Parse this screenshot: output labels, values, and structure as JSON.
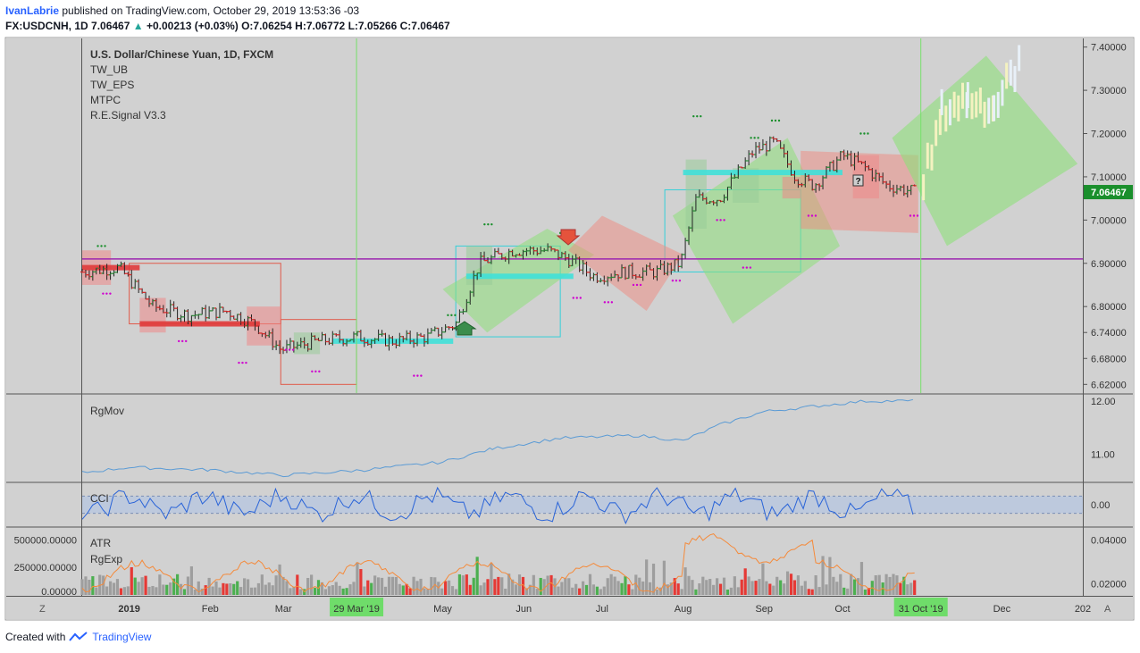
{
  "header": {
    "author": "IvanLabrie",
    "published": "published on TradingView.com, October 29, 2019 13:53:36 -03",
    "symbol": "FX:USDCNH, 1D",
    "last": "7.06467",
    "change": "+0.00213 (+0.03%)",
    "o_label": "O:",
    "o": "7.06254",
    "h_label": "H:",
    "h": "7.06772",
    "l_label": "L:",
    "l": "7.05266",
    "c_label": "C:",
    "c": "7.06467"
  },
  "legend": {
    "title": "U.S. Dollar/Chinese Yuan, 1D, FXCM",
    "items": [
      "TW_UB",
      "TW_EPS",
      "MTPC",
      "R.E.Signal V3.3"
    ]
  },
  "panes": {
    "rgmov": "RgMov",
    "cci": "CCI",
    "atr": "ATR",
    "rgexp": "RgExp"
  },
  "footer": {
    "created_with": "Created with",
    "brand": "TradingView"
  },
  "colors": {
    "up": "#4caf50",
    "down": "#e53935",
    "line": "#5b9bd5",
    "atr": "#f58a3a",
    "purple": "#9c27b0",
    "green_line": "#76e06a",
    "price_tag": "#1a8f2c",
    "cci_band": "#b8c7e0",
    "bg": "#d1d1d1"
  },
  "chart_data": [
    {
      "type": "candlestick",
      "title": "U.S. Dollar/Chinese Yuan, 1D, FXCM",
      "y_ticks": [
        "7.40000",
        "7.30000",
        "7.20000",
        "7.10000",
        "7.00000",
        "6.90000",
        "6.80000",
        "6.74000",
        "6.68000",
        "6.62000"
      ],
      "y_tick_values": [
        7.4,
        7.3,
        7.2,
        7.1,
        7.0,
        6.9,
        6.8,
        6.74,
        6.68,
        6.62
      ],
      "ylim": [
        6.6,
        7.42
      ],
      "last_price_label": "7.06467",
      "horizontal_line": 6.91,
      "x_ticks": [
        "2019",
        "Feb",
        "Mar",
        "29 Mar '19",
        "May",
        "Jun",
        "Jul",
        "Aug",
        "Sep",
        "Oct",
        "31 Oct '19",
        "Dec",
        "202"
      ],
      "x_tick_positions": [
        "2019-01-01",
        "2019-02-01",
        "2019-03-01",
        "2019-03-29",
        "2019-05-01",
        "2019-06-01",
        "2019-07-01",
        "2019-08-01",
        "2019-09-01",
        "2019-10-01",
        "2019-10-31",
        "2019-12-01",
        "2020-01-01"
      ],
      "x_range": [
        "2018-12-14",
        "2020-01-01"
      ],
      "closes_by_month": [
        {
          "date": "2018-12-14",
          "close": 6.88
        },
        {
          "date": "2018-12-28",
          "close": 6.89
        },
        {
          "date": "2019-01-10",
          "close": 6.8
        },
        {
          "date": "2019-01-24",
          "close": 6.78
        },
        {
          "date": "2019-02-07",
          "close": 6.79
        },
        {
          "date": "2019-02-18",
          "close": 6.76
        },
        {
          "date": "2019-02-28",
          "close": 6.7
        },
        {
          "date": "2019-03-14",
          "close": 6.72
        },
        {
          "date": "2019-03-29",
          "close": 6.73
        },
        {
          "date": "2019-04-12",
          "close": 6.72
        },
        {
          "date": "2019-04-25",
          "close": 6.73
        },
        {
          "date": "2019-05-06",
          "close": 6.76
        },
        {
          "date": "2019-05-15",
          "close": 6.9
        },
        {
          "date": "2019-05-28",
          "close": 6.93
        },
        {
          "date": "2019-06-10",
          "close": 6.93
        },
        {
          "date": "2019-06-18",
          "close": 6.91
        },
        {
          "date": "2019-06-28",
          "close": 6.87
        },
        {
          "date": "2019-07-10",
          "close": 6.88
        },
        {
          "date": "2019-07-22",
          "close": 6.88
        },
        {
          "date": "2019-07-31",
          "close": 6.9
        },
        {
          "date": "2019-08-06",
          "close": 7.05
        },
        {
          "date": "2019-08-15",
          "close": 7.05
        },
        {
          "date": "2019-08-28",
          "close": 7.16
        },
        {
          "date": "2019-09-05",
          "close": 7.18
        },
        {
          "date": "2019-09-13",
          "close": 7.1
        },
        {
          "date": "2019-09-20",
          "close": 7.08
        },
        {
          "date": "2019-10-01",
          "close": 7.15
        },
        {
          "date": "2019-10-10",
          "close": 7.12
        },
        {
          "date": "2019-10-18",
          "close": 7.08
        },
        {
          "date": "2019-10-29",
          "close": 7.06467
        }
      ],
      "projection": [
        {
          "date": "2019-11-01",
          "close": 7.1
        },
        {
          "date": "2019-11-08",
          "close": 7.25
        },
        {
          "date": "2019-11-18",
          "close": 7.28
        },
        {
          "date": "2019-11-28",
          "close": 7.26
        },
        {
          "date": "2019-12-08",
          "close": 7.37
        }
      ]
    },
    {
      "type": "line",
      "name": "RgMov",
      "y_ticks": [
        "12.00",
        "11.00"
      ],
      "y_tick_values": [
        12.0,
        11.0
      ],
      "ylim": [
        10.5,
        12.1
      ],
      "points": [
        {
          "date": "2018-12-14",
          "value": 10.65
        },
        {
          "date": "2019-01-01",
          "value": 10.75
        },
        {
          "date": "2019-02-01",
          "value": 10.7
        },
        {
          "date": "2019-03-01",
          "value": 10.6
        },
        {
          "date": "2019-04-01",
          "value": 10.7
        },
        {
          "date": "2019-05-01",
          "value": 10.85
        },
        {
          "date": "2019-05-20",
          "value": 11.1
        },
        {
          "date": "2019-06-15",
          "value": 11.3
        },
        {
          "date": "2019-07-15",
          "value": 11.35
        },
        {
          "date": "2019-08-01",
          "value": 11.25
        },
        {
          "date": "2019-08-15",
          "value": 11.55
        },
        {
          "date": "2019-09-01",
          "value": 11.8
        },
        {
          "date": "2019-09-20",
          "value": 11.9
        },
        {
          "date": "2019-10-10",
          "value": 12.0
        },
        {
          "date": "2019-10-29",
          "value": 12.0
        }
      ]
    },
    {
      "type": "line",
      "name": "CCI",
      "y_ticks": [
        "0.00"
      ],
      "y_tick_values": [
        0.0
      ],
      "ylim": [
        -1.2,
        1.2
      ],
      "band": [
        -0.5,
        0.5
      ]
    },
    {
      "type": "bar",
      "name": "ATR",
      "y_ticks_left": [
        "500000.00000",
        "250000.00000",
        "0.00000"
      ],
      "y_ticks_right": [
        "0.04000",
        "0.02000"
      ],
      "y_tick_values_left": [
        500000,
        250000,
        0
      ],
      "y_tick_values_right": [
        0.04,
        0.02
      ],
      "ylim_right": [
        0.015,
        0.045
      ]
    }
  ]
}
